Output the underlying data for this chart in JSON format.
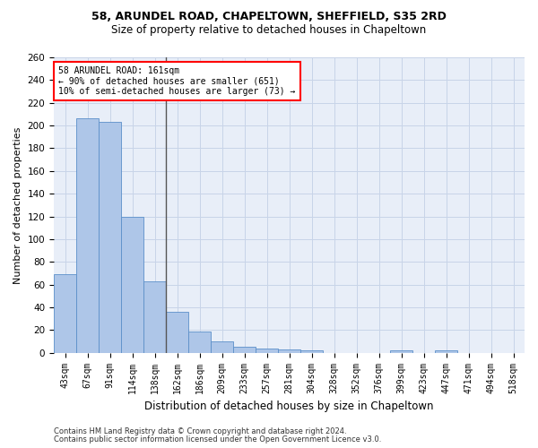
{
  "title1": "58, ARUNDEL ROAD, CHAPELTOWN, SHEFFIELD, S35 2RD",
  "title2": "Size of property relative to detached houses in Chapeltown",
  "xlabel": "Distribution of detached houses by size in Chapeltown",
  "ylabel": "Number of detached properties",
  "footnote1": "Contains HM Land Registry data © Crown copyright and database right 2024.",
  "footnote2": "Contains public sector information licensed under the Open Government Licence v3.0.",
  "bin_labels": [
    "43sqm",
    "67sqm",
    "91sqm",
    "114sqm",
    "138sqm",
    "162sqm",
    "186sqm",
    "209sqm",
    "233sqm",
    "257sqm",
    "281sqm",
    "304sqm",
    "328sqm",
    "352sqm",
    "376sqm",
    "399sqm",
    "423sqm",
    "447sqm",
    "471sqm",
    "494sqm",
    "518sqm"
  ],
  "bar_values": [
    69,
    206,
    203,
    120,
    63,
    36,
    19,
    10,
    5,
    4,
    3,
    2,
    0,
    0,
    0,
    2,
    0,
    2,
    0,
    0,
    0
  ],
  "bar_color": "#aec6e8",
  "bar_edge_color": "#5b8fc9",
  "grid_color": "#c8d4e8",
  "bg_color": "#e8eef8",
  "vline_color": "#555555",
  "annotation_text_line1": "58 ARUNDEL ROAD: 161sqm",
  "annotation_text_line2": "← 90% of detached houses are smaller (651)",
  "annotation_text_line3": "10% of semi-detached houses are larger (73) →",
  "annotation_box_color": "white",
  "annotation_box_edge": "red",
  "ylim": [
    0,
    260
  ],
  "yticks": [
    0,
    20,
    40,
    60,
    80,
    100,
    120,
    140,
    160,
    180,
    200,
    220,
    240,
    260
  ]
}
